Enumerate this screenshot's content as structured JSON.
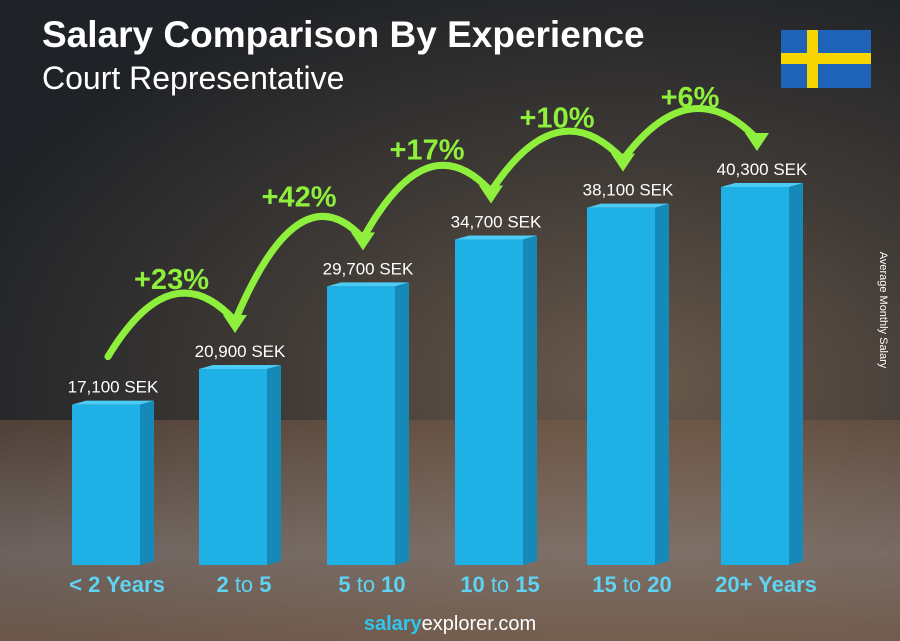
{
  "header": {
    "title": "Salary Comparison By Experience",
    "subtitle": "Court Representative"
  },
  "flag": {
    "country": "Sweden",
    "colors": {
      "blue": "#1e63b8",
      "yellow": "#f6d500"
    }
  },
  "footer": {
    "brand_bold": "salary",
    "brand_light": "explorer",
    "brand_tld": ".com"
  },
  "chart_data": {
    "type": "bar",
    "title": "Salary Comparison By Experience",
    "ylabel": "Average Monthly Salary",
    "unit": "SEK",
    "categories": [
      [
        "<",
        "2 Years",
        ""
      ],
      [
        "2",
        " to ",
        "5"
      ],
      [
        "5",
        " to ",
        "10"
      ],
      [
        "10",
        " to ",
        "15"
      ],
      [
        "15",
        " to ",
        "20"
      ],
      [
        "20+ Years",
        "",
        ""
      ]
    ],
    "values": [
      17100,
      20900,
      29700,
      34700,
      38100,
      40300
    ],
    "value_labels": [
      "17,100 SEK",
      "20,900 SEK",
      "29,700 SEK",
      "34,700 SEK",
      "38,100 SEK",
      "40,300 SEK"
    ],
    "increases": [
      "+23%",
      "+42%",
      "+17%",
      "+10%",
      "+6%"
    ],
    "colors": {
      "bar": "#1fb0e6",
      "bar_side": "#1589b8",
      "bar_top": "#4ccbf4",
      "increase": "#8ef03c",
      "category": "#5fd3f3"
    }
  }
}
